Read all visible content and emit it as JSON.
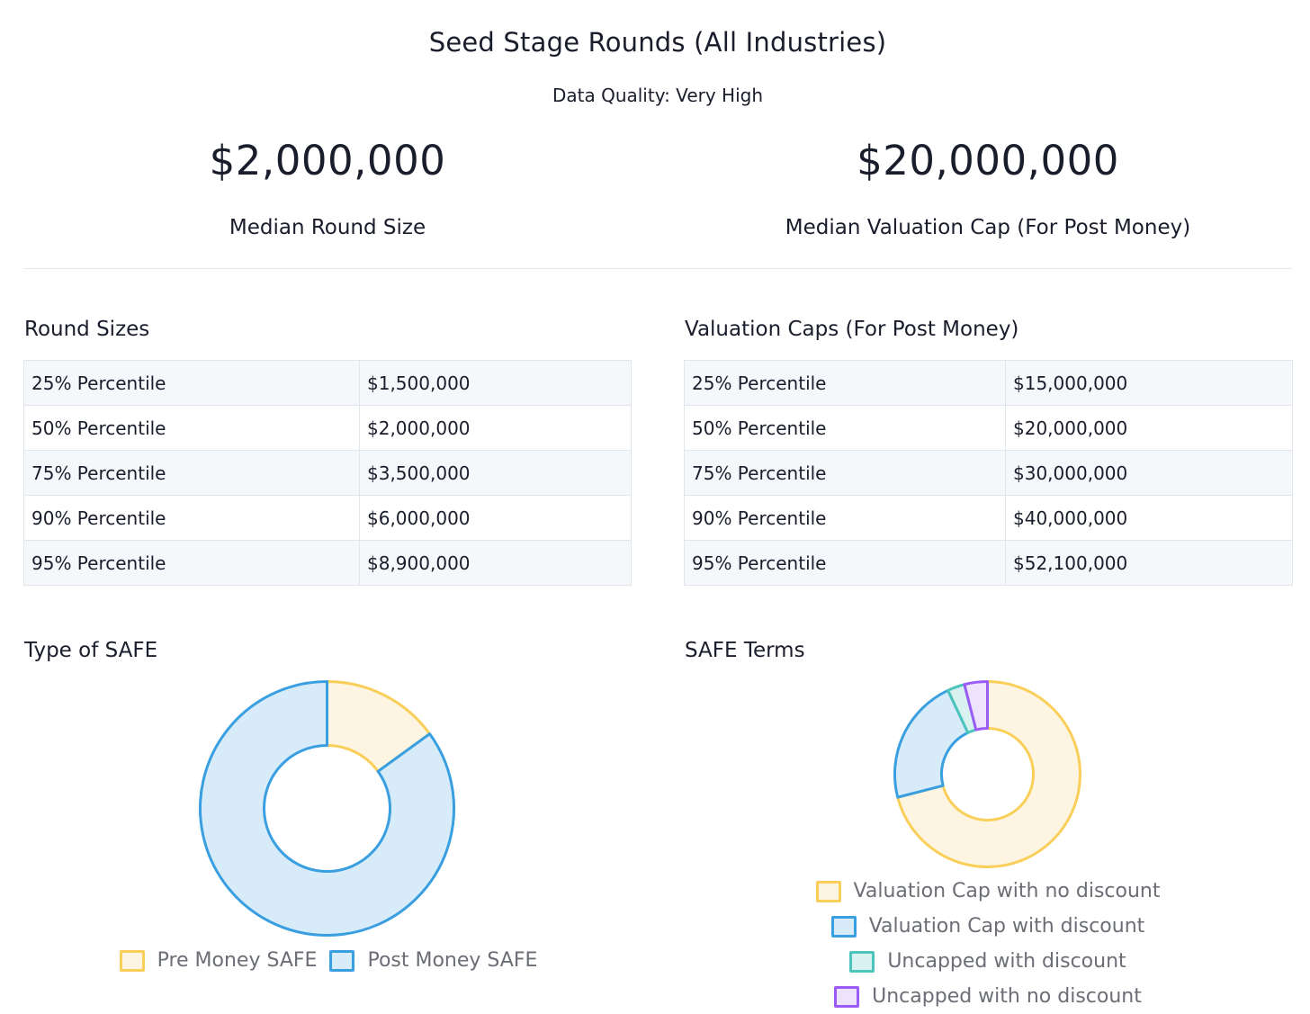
{
  "header": {
    "title": "Seed Stage Rounds (All Industries)",
    "subtitle": "Data Quality: Very High"
  },
  "stats": {
    "round_size": {
      "value": "$2,000,000",
      "label": "Median Round Size"
    },
    "valuation_cap": {
      "value": "$20,000,000",
      "label": "Median Valuation Cap (For Post Money)"
    }
  },
  "round_sizes": {
    "title": "Round Sizes",
    "rows": [
      {
        "label": "25% Percentile",
        "value": "$1,500,000"
      },
      {
        "label": "50% Percentile",
        "value": "$2,000,000"
      },
      {
        "label": "75% Percentile",
        "value": "$3,500,000"
      },
      {
        "label": "90% Percentile",
        "value": "$6,000,000"
      },
      {
        "label": "95% Percentile",
        "value": "$8,900,000"
      }
    ]
  },
  "valuation_caps": {
    "title": "Valuation Caps (For Post Money)",
    "rows": [
      {
        "label": "25% Percentile",
        "value": "$15,000,000"
      },
      {
        "label": "50% Percentile",
        "value": "$20,000,000"
      },
      {
        "label": "75% Percentile",
        "value": "$30,000,000"
      },
      {
        "label": "90% Percentile",
        "value": "$40,000,000"
      },
      {
        "label": "95% Percentile",
        "value": "$52,100,000"
      }
    ]
  },
  "chart_data": [
    {
      "type": "pie",
      "title": "Type of SAFE",
      "legend_position": "bottom",
      "series": [
        {
          "name": "Pre Money SAFE",
          "value": 15,
          "fill": "#fdf5e1",
          "stroke": "#f9cf5a"
        },
        {
          "name": "Post Money SAFE",
          "value": 85,
          "fill": "#d8ebf9",
          "stroke": "#3a9fe0"
        }
      ]
    },
    {
      "type": "pie",
      "title": "SAFE Terms",
      "legend_position": "bottom",
      "series": [
        {
          "name": "Valuation Cap with no discount",
          "value": 71,
          "fill": "#fdf5e1",
          "stroke": "#f9cf5a"
        },
        {
          "name": "Valuation Cap with discount",
          "value": 22,
          "fill": "#d8ebf9",
          "stroke": "#3a9fe0"
        },
        {
          "name": "Uncapped with discount",
          "value": 3,
          "fill": "#daf2ef",
          "stroke": "#4cc4bb"
        },
        {
          "name": "Uncapped with no discount",
          "value": 4,
          "fill": "#eee3fd",
          "stroke": "#9b5cf6"
        }
      ]
    }
  ]
}
